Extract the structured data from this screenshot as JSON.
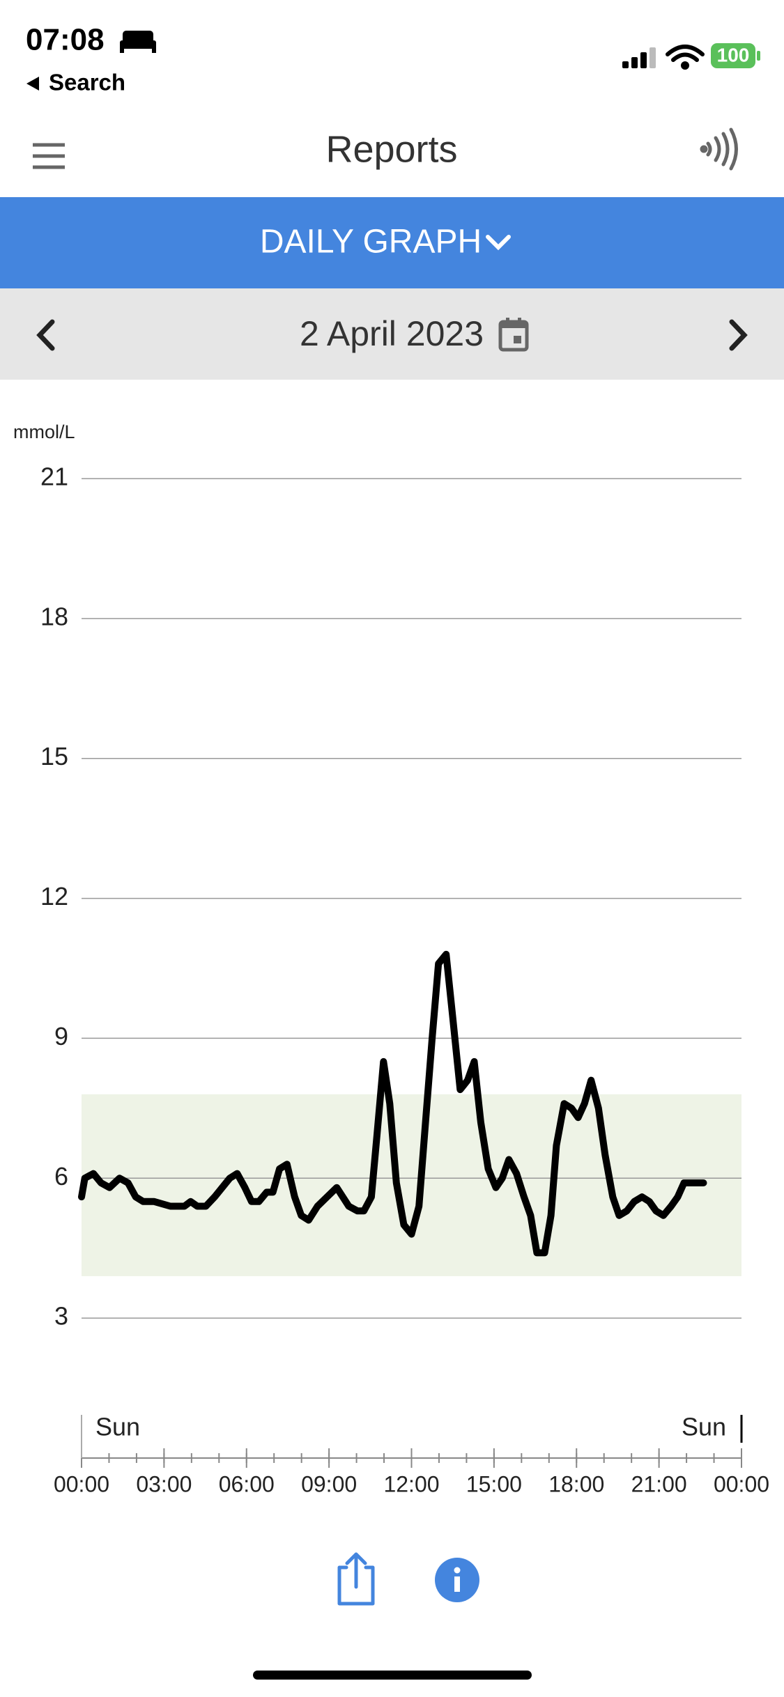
{
  "status_bar": {
    "time": "07:08",
    "back": "Search",
    "battery": 100
  },
  "header": {
    "title": "Reports"
  },
  "tab": {
    "label": "DAILY GRAPH"
  },
  "date_bar": {
    "date": "2 April 2023"
  },
  "chart_data": {
    "type": "line",
    "y_label": "mmol/L",
    "color": "#000000",
    "x": [
      0,
      0.12,
      0.43,
      0.71,
      1.02,
      1.38,
      1.69,
      1.97,
      2.24,
      2.64,
      3.23,
      3.74,
      3.97,
      4.21,
      4.52,
      4.84,
      5.39,
      5.66,
      5.94,
      6.18,
      6.45,
      6.73,
      6.96,
      7.2,
      7.47,
      7.75,
      7.99,
      8.26,
      8.58,
      8.93,
      9.28,
      9.72,
      10.03,
      10.27,
      10.54,
      10.74,
      10.98,
      11.21,
      11.45,
      11.72,
      12.0,
      12.27,
      12.51,
      12.75,
      12.98,
      13.26,
      13.49,
      13.77,
      14.04,
      14.28,
      14.52,
      14.79,
      15.07,
      15.3,
      15.54,
      15.82,
      16.09,
      16.33,
      16.56,
      16.84,
      17.07,
      17.27,
      17.55,
      17.82,
      18.06,
      18.29,
      18.53,
      18.8,
      19.04,
      19.32,
      19.55,
      19.83,
      20.1,
      20.38,
      20.65,
      20.89,
      21.16,
      21.44,
      21.68,
      21.91,
      22.19,
      22.38,
      22.62
    ],
    "values": [
      5.6,
      6.0,
      6.1,
      5.9,
      5.8,
      6.0,
      5.9,
      5.6,
      5.5,
      5.5,
      5.4,
      5.4,
      5.5,
      5.4,
      5.4,
      5.6,
      6.0,
      6.1,
      5.8,
      5.5,
      5.5,
      5.7,
      5.7,
      6.2,
      6.3,
      5.6,
      5.2,
      5.1,
      5.4,
      5.6,
      5.8,
      5.4,
      5.3,
      5.3,
      5.6,
      6.9,
      8.5,
      7.6,
      5.9,
      5.0,
      4.8,
      5.4,
      7.2,
      9.0,
      10.6,
      10.8,
      9.5,
      7.9,
      8.1,
      8.5,
      7.2,
      6.2,
      5.8,
      6.0,
      6.4,
      6.1,
      5.6,
      5.2,
      4.4,
      4.4,
      5.2,
      6.7,
      7.6,
      7.5,
      7.3,
      7.6,
      8.1,
      7.5,
      6.5,
      5.6,
      5.2,
      5.3,
      5.5,
      5.6,
      5.5,
      5.3,
      5.2,
      5.4,
      5.6,
      5.9,
      5.9,
      5.9,
      5.9
    ],
    "target_range": [
      3.9,
      7.8
    ],
    "target_color": "#eef3e6",
    "xlim": [
      0,
      24
    ],
    "ylim": [
      0,
      21
    ],
    "yticks": [
      3,
      6,
      9,
      12,
      15,
      18,
      21
    ],
    "xticks": [
      {
        "value": 0,
        "label": "00:00"
      },
      {
        "value": 3,
        "label": "03:00"
      },
      {
        "value": 6,
        "label": "06:00"
      },
      {
        "value": 9,
        "label": "09:00"
      },
      {
        "value": 12,
        "label": "12:00"
      },
      {
        "value": 15,
        "label": "15:00"
      },
      {
        "value": 18,
        "label": "18:00"
      },
      {
        "value": 21,
        "label": "21:00"
      },
      {
        "value": 24,
        "label": "00:00"
      }
    ],
    "xminorticks": [
      0,
      1,
      2,
      3,
      4,
      5,
      6,
      7,
      8,
      9,
      10,
      11,
      12,
      13,
      14,
      15,
      16,
      17,
      18,
      19,
      20,
      21,
      22,
      23,
      24
    ],
    "day_labels": [
      {
        "value": 0,
        "label": "Sun"
      },
      {
        "value": 24,
        "label": "Sun"
      }
    ],
    "grid": true
  }
}
